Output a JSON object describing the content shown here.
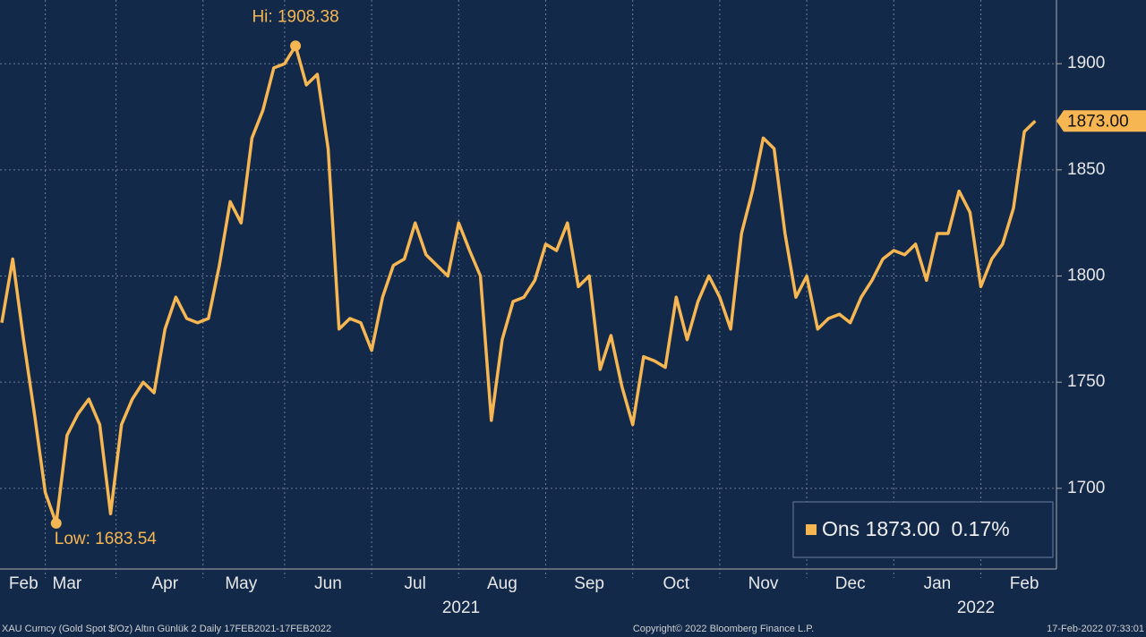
{
  "chart_data": {
    "type": "line",
    "series": [
      {
        "name": "Ons",
        "color": "#f6b652",
        "values": [
          1778,
          1808,
          1770,
          1735,
          1698,
          1683.54,
          1725,
          1735,
          1742,
          1730,
          1688,
          1730,
          1742,
          1750,
          1745,
          1775,
          1790,
          1780,
          1778,
          1780,
          1805,
          1835,
          1825,
          1865,
          1878,
          1898,
          1900,
          1908.38,
          1890,
          1895,
          1860,
          1775,
          1780,
          1778,
          1765,
          1790,
          1805,
          1808,
          1825,
          1810,
          1805,
          1800,
          1825,
          1812,
          1800,
          1732,
          1770,
          1788,
          1790,
          1798,
          1815,
          1812,
          1825,
          1795,
          1800,
          1756,
          1772,
          1748,
          1730,
          1762,
          1760,
          1757,
          1790,
          1770,
          1788,
          1800,
          1790,
          1775,
          1820,
          1840,
          1865,
          1860,
          1820,
          1790,
          1800,
          1775,
          1780,
          1782,
          1778,
          1790,
          1798,
          1808,
          1812,
          1810,
          1815,
          1798,
          1820,
          1820,
          1840,
          1830,
          1795,
          1808,
          1815,
          1832,
          1868,
          1873
        ]
      }
    ],
    "categories": [
      null,
      null,
      "Feb",
      null,
      null,
      null,
      "Mar",
      null,
      null,
      null,
      null,
      null,
      null,
      null,
      null,
      "Apr",
      null,
      null,
      null,
      null,
      null,
      null,
      "May",
      null,
      null,
      null,
      null,
      null,
      null,
      null,
      "Jun",
      null,
      null,
      null,
      null,
      null,
      null,
      null,
      "Jul",
      null,
      null,
      null,
      null,
      null,
      null,
      null,
      "Aug",
      null,
      null,
      null,
      null,
      null,
      null,
      null,
      "Sep",
      null,
      null,
      null,
      null,
      null,
      null,
      null,
      "Oct",
      null,
      null,
      null,
      null,
      null,
      null,
      null,
      "Nov",
      null,
      null,
      null,
      null,
      null,
      null,
      null,
      "Dec",
      null,
      null,
      null,
      null,
      null,
      null,
      null,
      "Jan",
      null,
      null,
      null,
      null,
      null,
      null,
      null,
      "Feb",
      null
    ],
    "years": [
      "2021",
      "2022"
    ],
    "ylim": [
      1662,
      1930
    ],
    "yticks": [
      1700,
      1750,
      1800,
      1850,
      1900
    ],
    "grid": true,
    "hi_label": "Hi: 1908.38",
    "low_label": "Low: 1683.54",
    "last_value_label": "1873.00",
    "legend_text": "Ons 1873.00  0.17%",
    "footer_left": "XAU Curncy (Gold Spot  $/Oz) Altın Günlük 2  Daily 17FEB2021-17FEB2022",
    "footer_center": "Copyright© 2022 Bloomberg Finance L.P.",
    "footer_right": "17-Feb-2022 07:33:01"
  }
}
